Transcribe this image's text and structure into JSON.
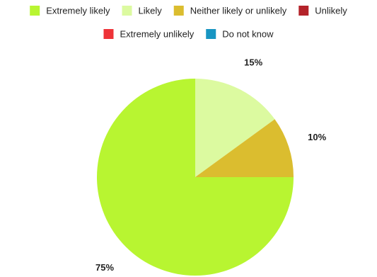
{
  "chart_data": {
    "type": "pie",
    "legend_position": "top",
    "categories": [
      "Extremely likely",
      "Likely",
      "Neither likely or unlikely",
      "Unlikely",
      "Extremely unlikely",
      "Do not know"
    ],
    "values": [
      75,
      15,
      10,
      0,
      0,
      0
    ],
    "value_labels": [
      "75%",
      "15%",
      "10%",
      "",
      "",
      ""
    ],
    "colors": [
      "#b8f531",
      "#dcfaa0",
      "#dbbd2f",
      "#b4232a",
      "#ee3338",
      "#1895c2"
    ]
  }
}
